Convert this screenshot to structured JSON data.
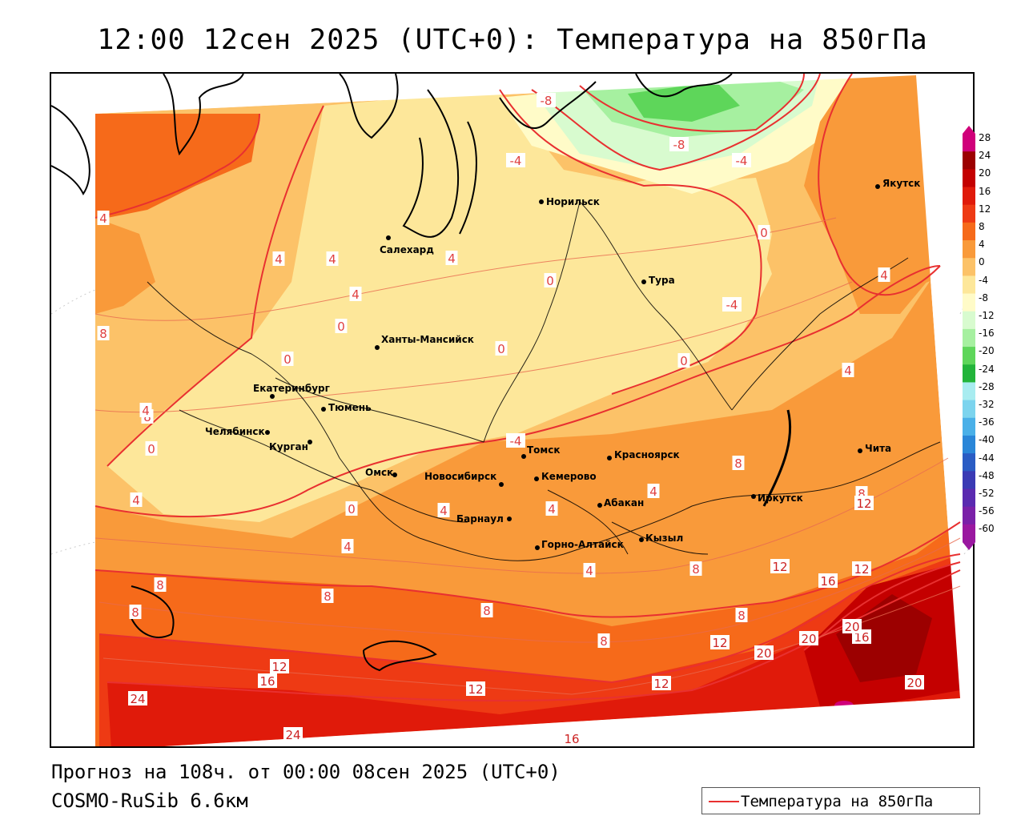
{
  "title": "12:00 12сен 2025 (UTC+0): Температура на 850гПа",
  "footer": {
    "forecast": "Прогноз на 108ч. от 00:00 08сен 2025 (UTC+0)",
    "model": "COSMO-RuSib 6.6км"
  },
  "legend": {
    "label": "Температура на 850гПа",
    "line_color": "#e83030"
  },
  "colorbar": {
    "labels": [
      "28",
      "24",
      "20",
      "16",
      "12",
      "8",
      "4",
      "0",
      "-4",
      "-8",
      "-12",
      "-16",
      "-20",
      "-24",
      "-28",
      "-32",
      "-36",
      "-40",
      "-44",
      "-48",
      "-52",
      "-56",
      "-60"
    ],
    "colors": [
      "#d0007a",
      "#9c0000",
      "#c40000",
      "#e01a0a",
      "#ee3a14",
      "#f66a1a",
      "#f99a3a",
      "#fcc268",
      "#fde79a",
      "#fffbc8",
      "#d8fbcf",
      "#a6f0a0",
      "#5ed65a",
      "#22b43a",
      "#a8ecf0",
      "#7cd4ee",
      "#4ab0e8",
      "#2a86d8",
      "#2a5cc4",
      "#3a3ab4",
      "#5a2ab0",
      "#7a20a8",
      "#9a18a0"
    ]
  },
  "cities": [
    {
      "name": "Норильск"
    },
    {
      "name": "Якутск"
    },
    {
      "name": "Салехард"
    },
    {
      "name": "Тура"
    },
    {
      "name": "Ханты-Мансийск"
    },
    {
      "name": "Екатеринбург"
    },
    {
      "name": "Тюмень"
    },
    {
      "name": "Челябинск"
    },
    {
      "name": "Курган"
    },
    {
      "name": "Омск"
    },
    {
      "name": "Новосибирск"
    },
    {
      "name": "Томск"
    },
    {
      "name": "Кемерово"
    },
    {
      "name": "Красноярск"
    },
    {
      "name": "Барнаул"
    },
    {
      "name": "Абакан"
    },
    {
      "name": "Горно-Алтайск"
    },
    {
      "name": "Кызыл"
    },
    {
      "name": "Иркутск"
    },
    {
      "name": "Чита"
    }
  ],
  "isotherm_labels": [
    "-8",
    "-8",
    "-4",
    "-4",
    "-4",
    "4",
    "0",
    "8",
    "4",
    "4",
    "4",
    "4",
    "8",
    "0",
    "0",
    "0",
    "0",
    "0",
    "4",
    "4",
    "0",
    "-4",
    "0",
    "4",
    "4",
    "4",
    "4",
    "4",
    "4",
    "8",
    "8",
    "8",
    "8",
    "8",
    "8",
    "8",
    "8",
    "8",
    "12",
    "12",
    "12",
    "16",
    "12",
    "16",
    "16",
    "20",
    "24",
    "20",
    "20",
    "20",
    "24",
    "16",
    "12",
    "12",
    "12",
    "0",
    "4",
    "4",
    "0"
  ]
}
